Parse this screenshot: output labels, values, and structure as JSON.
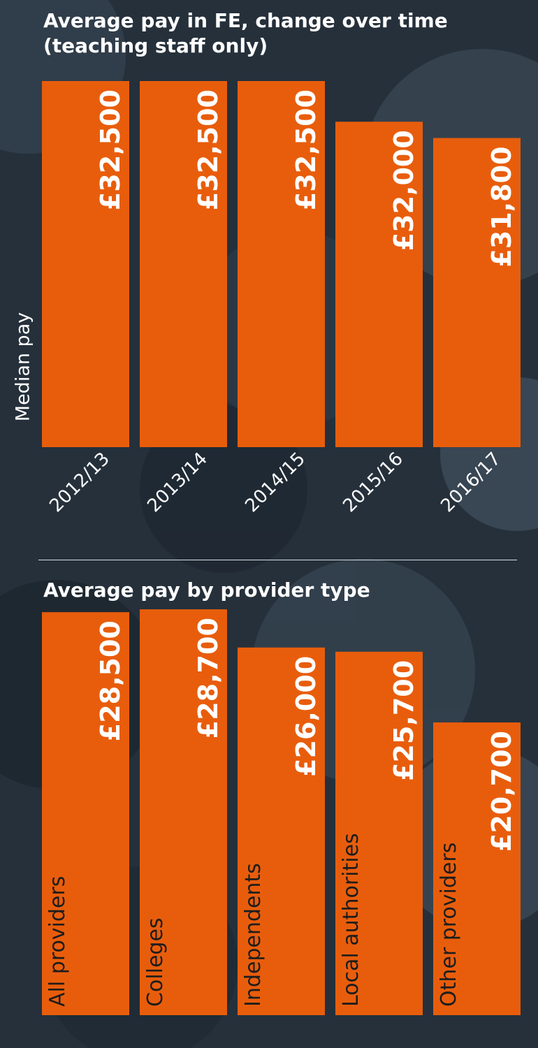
{
  "chart_data": [
    {
      "type": "bar",
      "title": "Average pay in FE, change over time (teaching staff only)",
      "ylabel": "Median pay",
      "xlabel": "",
      "ylim": [
        28000,
        32500
      ],
      "categories": [
        "2012/13",
        "2013/14",
        "2014/15",
        "2015/16",
        "2016/17"
      ],
      "values": [
        32500,
        32500,
        32500,
        32000,
        31800
      ],
      "value_labels": [
        "£32,500",
        "£32,500",
        "£32,500",
        "£32,000",
        "£31,800"
      ],
      "colors": {
        "bar": "#e85d0c",
        "text": "#ffffff"
      }
    },
    {
      "type": "bar",
      "title": "Average pay by provider type",
      "xlabel": "",
      "ylabel": "",
      "ylim": [
        0,
        29200
      ],
      "categories": [
        "All providers",
        "Colleges",
        "Independents",
        "Local authorities",
        "Other providers"
      ],
      "values": [
        28500,
        28700,
        26000,
        25700,
        20700
      ],
      "value_labels": [
        "£28,500",
        "£28,700",
        "£26,000",
        "£25,700",
        "£20,700"
      ],
      "colors": {
        "bar": "#e85d0c",
        "text": "#ffffff"
      }
    }
  ]
}
